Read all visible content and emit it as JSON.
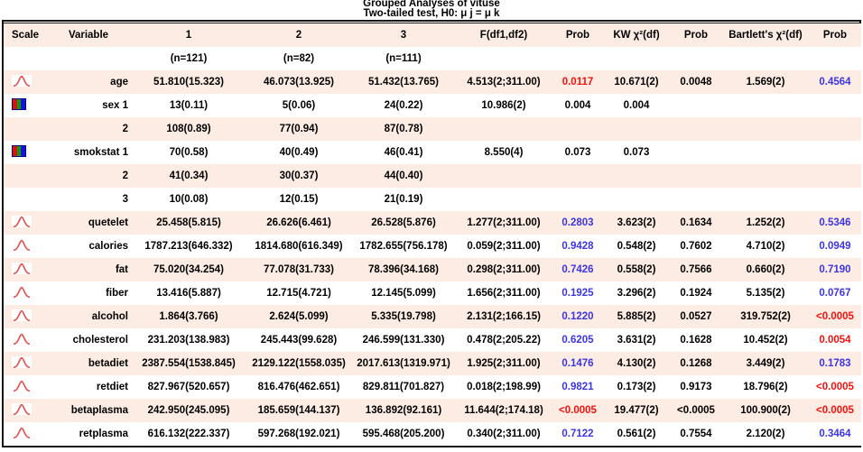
{
  "title": {
    "line1": "Grouped Analyses of vituse",
    "line2": "Two-tailed test, H0: μ j = μ k"
  },
  "colors": {
    "red": "#f2120e",
    "blue": "#3c35e2",
    "black": "#000000",
    "stripe_bg": "#fdece3",
    "curve_icon": "#e25555"
  },
  "table": {
    "columns": [
      "Scale",
      "Variable",
      "1",
      "2",
      "3",
      "F(df1,df2)",
      "Prob",
      "KW χ²(df)",
      "Prob",
      "Bartlett's χ²(df)",
      "Prob"
    ],
    "subheader": {
      "g1": "(n=121)",
      "g2": "(n=82)",
      "g3": "(n=111)"
    },
    "rows": [
      {
        "scale": "normal",
        "variable": "age",
        "g1": "51.810(15.323)",
        "g2": "46.073(13.925)",
        "g3": "51.432(13.765)",
        "f": "4.513(2;311.00)",
        "f_prob": "0.0117",
        "f_prob_color": "red",
        "kw": "10.671(2)",
        "kw_prob": "0.0048",
        "bartlett": "1.569(2)",
        "b_prob": "0.4564",
        "b_prob_color": "blue"
      },
      {
        "scale": "categorical",
        "variable": "sex 1",
        "g1": "13(0.11)",
        "g2": "5(0.06)",
        "g3": "24(0.22)",
        "f": "10.986(2)",
        "f_prob": "0.004",
        "f_prob_color": "black",
        "kw": "0.004",
        "kw_prob": "",
        "bartlett": "",
        "b_prob": "",
        "b_prob_color": "black"
      },
      {
        "scale": "none",
        "variable": "2",
        "g1": "108(0.89)",
        "g2": "77(0.94)",
        "g3": "87(0.78)",
        "f": "",
        "f_prob": "",
        "f_prob_color": "black",
        "kw": "",
        "kw_prob": "",
        "bartlett": "",
        "b_prob": "",
        "b_prob_color": "black"
      },
      {
        "scale": "categorical",
        "variable": "smokstat 1",
        "g1": "70(0.58)",
        "g2": "40(0.49)",
        "g3": "46(0.41)",
        "f": "8.550(4)",
        "f_prob": "0.073",
        "f_prob_color": "black",
        "kw": "0.073",
        "kw_prob": "",
        "bartlett": "",
        "b_prob": "",
        "b_prob_color": "black"
      },
      {
        "scale": "none",
        "variable": "2",
        "g1": "41(0.34)",
        "g2": "30(0.37)",
        "g3": "44(0.40)",
        "f": "",
        "f_prob": "",
        "f_prob_color": "black",
        "kw": "",
        "kw_prob": "",
        "bartlett": "",
        "b_prob": "",
        "b_prob_color": "black"
      },
      {
        "scale": "none",
        "variable": "3",
        "g1": "10(0.08)",
        "g2": "12(0.15)",
        "g3": "21(0.19)",
        "f": "",
        "f_prob": "",
        "f_prob_color": "black",
        "kw": "",
        "kw_prob": "",
        "bartlett": "",
        "b_prob": "",
        "b_prob_color": "black"
      },
      {
        "scale": "normal",
        "variable": "quetelet",
        "g1": "25.458(5.815)",
        "g2": "26.626(6.461)",
        "g3": "26.528(5.876)",
        "f": "1.277(2;311.00)",
        "f_prob": "0.2803",
        "f_prob_color": "blue",
        "kw": "3.623(2)",
        "kw_prob": "0.1634",
        "bartlett": "1.252(2)",
        "b_prob": "0.5346",
        "b_prob_color": "blue"
      },
      {
        "scale": "normal",
        "variable": "calories",
        "g1": "1787.213(646.332)",
        "g2": "1814.680(616.349)",
        "g3": "1782.655(756.178)",
        "f": "0.059(2;311.00)",
        "f_prob": "0.9428",
        "f_prob_color": "blue",
        "kw": "0.548(2)",
        "kw_prob": "0.7602",
        "bartlett": "4.710(2)",
        "b_prob": "0.0949",
        "b_prob_color": "blue"
      },
      {
        "scale": "normal",
        "variable": "fat",
        "g1": "75.020(34.254)",
        "g2": "77.078(31.733)",
        "g3": "78.396(34.168)",
        "f": "0.298(2;311.00)",
        "f_prob": "0.7426",
        "f_prob_color": "blue",
        "kw": "0.558(2)",
        "kw_prob": "0.7566",
        "bartlett": "0.660(2)",
        "b_prob": "0.7190",
        "b_prob_color": "blue"
      },
      {
        "scale": "normal",
        "variable": "fiber",
        "g1": "13.416(5.887)",
        "g2": "12.715(4.721)",
        "g3": "12.145(5.099)",
        "f": "1.656(2;311.00)",
        "f_prob": "0.1925",
        "f_prob_color": "blue",
        "kw": "3.296(2)",
        "kw_prob": "0.1924",
        "bartlett": "5.135(2)",
        "b_prob": "0.0767",
        "b_prob_color": "blue"
      },
      {
        "scale": "normal",
        "variable": "alcohol",
        "g1": "1.864(3.766)",
        "g2": "2.624(5.099)",
        "g3": "5.335(19.798)",
        "f": "2.131(2;166.15)",
        "f_prob": "0.1220",
        "f_prob_color": "blue",
        "kw": "5.885(2)",
        "kw_prob": "0.0527",
        "bartlett": "319.752(2)",
        "b_prob": "<0.0005",
        "b_prob_color": "red"
      },
      {
        "scale": "normal",
        "variable": "cholesterol",
        "g1": "231.203(138.983)",
        "g2": "245.443(99.628)",
        "g3": "246.599(131.330)",
        "f": "0.478(2;205.22)",
        "f_prob": "0.6205",
        "f_prob_color": "blue",
        "kw": "3.631(2)",
        "kw_prob": "0.1628",
        "bartlett": "10.452(2)",
        "b_prob": "0.0054",
        "b_prob_color": "red"
      },
      {
        "scale": "normal",
        "variable": "betadiet",
        "g1": "2387.554(1538.845)",
        "g2": "2129.122(1558.035)",
        "g3": "2017.613(1319.971)",
        "f": "1.925(2;311.00)",
        "f_prob": "0.1476",
        "f_prob_color": "blue",
        "kw": "4.130(2)",
        "kw_prob": "0.1268",
        "bartlett": "3.449(2)",
        "b_prob": "0.1783",
        "b_prob_color": "blue"
      },
      {
        "scale": "normal",
        "variable": "retdiet",
        "g1": "827.967(520.657)",
        "g2": "816.476(462.651)",
        "g3": "829.811(701.827)",
        "f": "0.018(2;198.99)",
        "f_prob": "0.9821",
        "f_prob_color": "blue",
        "kw": "0.173(2)",
        "kw_prob": "0.9173",
        "bartlett": "18.796(2)",
        "b_prob": "<0.0005",
        "b_prob_color": "red"
      },
      {
        "scale": "normal",
        "variable": "betaplasma",
        "g1": "242.950(245.095)",
        "g2": "185.659(144.137)",
        "g3": "136.892(92.161)",
        "f": "11.644(2;174.18)",
        "f_prob": "<0.0005",
        "f_prob_color": "red",
        "kw": "19.477(2)",
        "kw_prob": "<0.0005",
        "bartlett": "100.900(2)",
        "b_prob": "<0.0005",
        "b_prob_color": "red"
      },
      {
        "scale": "normal",
        "variable": "retplasma",
        "g1": "616.132(222.337)",
        "g2": "597.268(192.021)",
        "g3": "595.468(205.200)",
        "f": "0.340(2;311.00)",
        "f_prob": "0.7122",
        "f_prob_color": "blue",
        "kw": "0.561(2)",
        "kw_prob": "0.7554",
        "bartlett": "2.120(2)",
        "b_prob": "0.3464",
        "b_prob_color": "blue"
      }
    ]
  }
}
